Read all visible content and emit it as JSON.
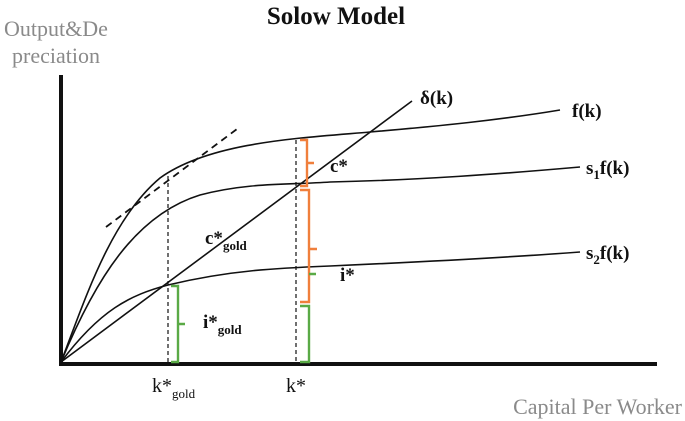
{
  "title": "Solow Model",
  "y_axis_title": {
    "line1": "Output&De",
    "line2": "preciation"
  },
  "x_axis_title": "Capital Per Worker",
  "curves": {
    "depreciation": {
      "main": "δ(k)"
    },
    "output": {
      "main": "f(k)"
    },
    "saving_1": {
      "pre": "s",
      "sub": "1",
      "post": "f(k)"
    },
    "saving_2": {
      "pre": "s",
      "sub": "2",
      "post": "f(k)"
    }
  },
  "annotations": {
    "c_star": "c*",
    "c_star_gold": {
      "main": "c*",
      "sub": "gold"
    },
    "i_star": "i*",
    "i_star_gold": {
      "main": "i*",
      "sub": "gold"
    }
  },
  "x_ticks": {
    "k_star_gold": {
      "main": "k*",
      "sub": "gold"
    },
    "k_star": "k*"
  },
  "colors": {
    "consumption": "#f07f3c",
    "investment": "#5aaa46",
    "ink": "#111111",
    "axis_title": "#8a8a8a"
  }
}
